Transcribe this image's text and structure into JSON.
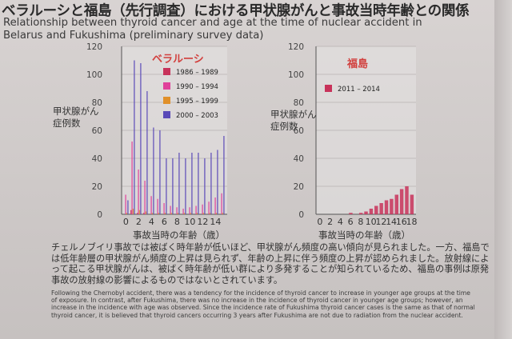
{
  "title_ja": "ベラルーシと福島（先行調査）における甲状腺がんと事故当時年齢との関係",
  "title_en": "Relationship between thyroid cancer and age at the time of nuclear accident in Belarus and Fukushima (preliminary survey data)",
  "body_ja": "チェルノブイリ事故では被ばく時年齢が低いほど、甲状腺がん頻度の高い傾向が見られました。一方、福島では低年齢層の甲状腺がん頻度の上昇は見られず、年齢の上昇に伴う頻度の上昇が認められました。放射線によって起こる甲状腺がんは、被ばく時年齢が低い群により多発することが知られているため、福島の事例は原発事故の放射線の影響によるものではないとされています。",
  "body_en": "Following the Chernobyl accident, there was a tendency for the incidence of thyroid cancer to increase in younger age groups at the time of exposure. In contrast, after Fukushima, there was no increase in the incidence of thyroid cancer in younger age groups; however, an increase in the incidence with age was observed. Since the incidence rate of Fukushima thyroid cancer cases is the same as that of normal thyroid cancer, it is believed that thyroid cancers occurring 3 years after Fukushima are not due to radiation from the nuclear accident.",
  "chart_data": [
    {
      "type": "bar",
      "title": "ベラルーシ",
      "ylabel": "甲状腺がん\n症例数",
      "xlabel": "事故当時の年齢（歳）",
      "ylim": [
        0,
        120
      ],
      "yticks": [
        "0",
        "20",
        "40",
        "60",
        "80",
        "100",
        "120"
      ],
      "xtick_labels": [
        "0",
        "2",
        "4",
        "6",
        "8",
        "10",
        "12",
        "14"
      ],
      "categories": [
        "0",
        "1",
        "2",
        "3",
        "4",
        "5",
        "6",
        "7",
        "8",
        "9",
        "10",
        "11",
        "12",
        "13",
        "14",
        "15"
      ],
      "legend_position": "top-right",
      "series": [
        {
          "name": "1986 – 1989",
          "color": "#c8325a",
          "values": [
            0,
            3,
            1,
            1,
            0,
            0,
            0,
            0,
            0,
            0,
            0,
            0,
            0,
            0,
            0,
            0
          ]
        },
        {
          "name": "1990 – 1994",
          "color": "#e0409a",
          "values": [
            14,
            52,
            32,
            24,
            13,
            11,
            8,
            6,
            5,
            4,
            5,
            6,
            7,
            9,
            12,
            15
          ]
        },
        {
          "name": "1995 – 1999",
          "color": "#e0902a",
          "values": [
            1,
            4,
            3,
            2,
            1,
            1,
            1,
            1,
            1,
            1,
            1,
            1,
            1,
            1,
            1,
            1
          ]
        },
        {
          "name": "2000 – 2003",
          "color": "#5a4ab8",
          "values": [
            10,
            110,
            108,
            88,
            62,
            60,
            40,
            40,
            44,
            40,
            44,
            44,
            40,
            44,
            46,
            56
          ]
        }
      ]
    },
    {
      "type": "bar",
      "title": "福島",
      "ylabel": "甲状腺がん\n症例数",
      "xlabel": "事故当時の年齢（歳）",
      "ylim": [
        0,
        120
      ],
      "yticks": [
        "0",
        "20",
        "40",
        "60",
        "80",
        "100",
        "120"
      ],
      "xtick_labels": [
        "0",
        "2",
        "4",
        "6",
        "8",
        "10",
        "12",
        "14",
        "16",
        "18"
      ],
      "categories": [
        "0",
        "1",
        "2",
        "3",
        "4",
        "5",
        "6",
        "7",
        "8",
        "9",
        "10",
        "11",
        "12",
        "13",
        "14",
        "15",
        "16",
        "17",
        "18"
      ],
      "legend_position": "top-left",
      "series": [
        {
          "name": "2011 – 2014",
          "color": "#c8325a",
          "values": [
            0,
            0,
            0,
            0,
            0,
            0,
            1,
            0,
            1,
            2,
            4,
            6,
            8,
            10,
            11,
            14,
            18,
            20,
            14
          ]
        }
      ]
    }
  ]
}
